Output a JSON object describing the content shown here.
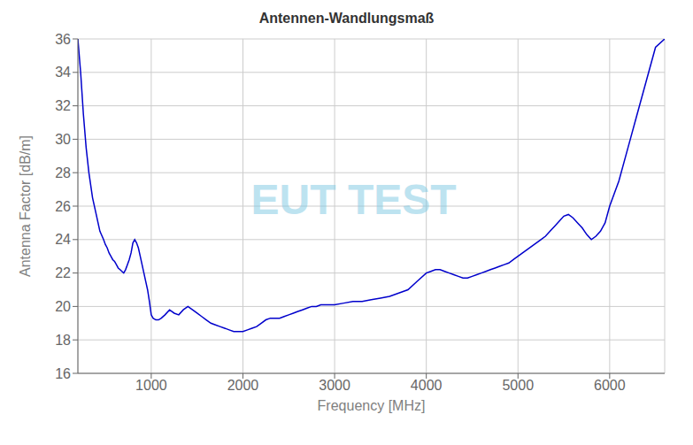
{
  "chart_data": {
    "type": "line",
    "title": "Antennen-Wandlungsmaß",
    "xlabel": "Frequency [MHz]",
    "ylabel": "Antenna Factor [dB/m]",
    "annotations": [
      "EUT TEST"
    ],
    "x": [
      200,
      230,
      260,
      290,
      320,
      360,
      400,
      440,
      480,
      500,
      520,
      540,
      560,
      580,
      600,
      620,
      640,
      660,
      680,
      700,
      720,
      740,
      760,
      780,
      800,
      820,
      840,
      860,
      880,
      900,
      920,
      940,
      960,
      980,
      1000,
      1020,
      1050,
      1080,
      1110,
      1150,
      1200,
      1250,
      1300,
      1350,
      1400,
      1450,
      1500,
      1550,
      1600,
      1650,
      1700,
      1750,
      1800,
      1850,
      1900,
      1950,
      2000,
      2050,
      2100,
      2150,
      2200,
      2250,
      2300,
      2350,
      2400,
      2450,
      2500,
      2550,
      2600,
      2650,
      2700,
      2750,
      2800,
      2850,
      2900,
      2950,
      3000,
      3100,
      3200,
      3300,
      3400,
      3500,
      3600,
      3700,
      3800,
      3900,
      4000,
      4050,
      4100,
      4150,
      4200,
      4250,
      4300,
      4350,
      4400,
      4450,
      4500,
      4550,
      4600,
      4650,
      4700,
      4750,
      4800,
      4850,
      4900,
      4950,
      5000,
      5050,
      5100,
      5150,
      5200,
      5250,
      5300,
      5350,
      5400,
      5450,
      5500,
      5550,
      5600,
      5650,
      5700,
      5750,
      5800,
      5850,
      5900,
      5950,
      6000,
      6100,
      6200,
      6300,
      6400,
      6500,
      6600
    ],
    "values": [
      36.0,
      34.0,
      31.5,
      29.5,
      28.0,
      26.5,
      25.5,
      24.5,
      24.0,
      23.7,
      23.5,
      23.2,
      23.0,
      22.8,
      22.7,
      22.5,
      22.3,
      22.2,
      22.1,
      22.0,
      22.2,
      22.5,
      22.8,
      23.2,
      23.8,
      24.0,
      23.8,
      23.5,
      23.0,
      22.5,
      22.0,
      21.5,
      21.0,
      20.3,
      19.5,
      19.3,
      19.2,
      19.2,
      19.3,
      19.5,
      19.8,
      19.6,
      19.5,
      19.8,
      20.0,
      19.8,
      19.6,
      19.4,
      19.2,
      19.0,
      18.9,
      18.8,
      18.7,
      18.6,
      18.5,
      18.5,
      18.5,
      18.6,
      18.7,
      18.8,
      19.0,
      19.2,
      19.3,
      19.3,
      19.3,
      19.4,
      19.5,
      19.6,
      19.7,
      19.8,
      19.9,
      20.0,
      20.0,
      20.1,
      20.1,
      20.1,
      20.1,
      20.2,
      20.3,
      20.3,
      20.4,
      20.5,
      20.6,
      20.8,
      21.0,
      21.5,
      22.0,
      22.1,
      22.2,
      22.2,
      22.1,
      22.0,
      21.9,
      21.8,
      21.7,
      21.7,
      21.8,
      21.9,
      22.0,
      22.1,
      22.2,
      22.3,
      22.4,
      22.5,
      22.6,
      22.8,
      23.0,
      23.2,
      23.4,
      23.6,
      23.8,
      24.0,
      24.2,
      24.5,
      24.8,
      25.1,
      25.4,
      25.5,
      25.3,
      25.0,
      24.7,
      24.3,
      24.0,
      24.2,
      24.5,
      25.0,
      26.0,
      27.5,
      29.5,
      31.5,
      33.5,
      35.5,
      36.0
    ],
    "color": "#0000CC",
    "xlim": [
      200,
      6600
    ],
    "ylim": [
      16,
      36
    ],
    "xticks": [
      1000,
      2000,
      3000,
      4000,
      5000,
      6000
    ],
    "yticks": [
      16,
      18,
      20,
      22,
      24,
      26,
      28,
      30,
      32,
      34,
      36
    ],
    "grid": true
  }
}
